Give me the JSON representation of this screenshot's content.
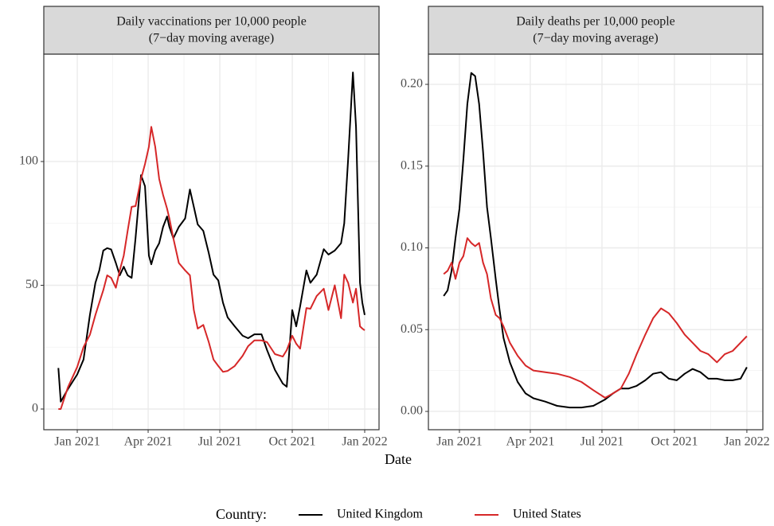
{
  "chart_data": [
    {
      "type": "line",
      "title": "Daily vaccinations per 10,000 people",
      "subtitle": "(7−day moving average)",
      "x": [
        -24,
        -21,
        -12,
        0,
        8,
        16,
        23,
        28,
        33,
        38,
        43,
        49,
        54,
        59,
        64,
        69,
        74,
        81,
        86,
        91,
        94,
        99,
        104,
        109,
        114,
        117,
        122,
        129,
        137,
        143,
        148,
        153,
        160,
        167,
        173,
        179,
        185,
        191,
        200,
        210,
        217,
        225,
        234,
        241,
        251,
        261,
        266,
        273,
        278,
        283,
        291,
        296,
        304,
        313,
        319,
        327,
        335,
        339,
        344,
        350,
        354,
        359,
        362,
        365
      ],
      "series": [
        {
          "name": "United Kingdom",
          "color": "#000000",
          "values": [
            16.6,
            3,
            8,
            14,
            20,
            38,
            51,
            56,
            64,
            65,
            64.5,
            59,
            54,
            57.5,
            54,
            53,
            69,
            94.5,
            90,
            62,
            58.5,
            64,
            67,
            73.6,
            77.8,
            73.6,
            69,
            73.6,
            77,
            88.7,
            81.7,
            74.6,
            72,
            63,
            54.3,
            52,
            43,
            37,
            33.4,
            29.6,
            28.6,
            30.2,
            30.2,
            23.8,
            15.8,
            10.3,
            9,
            40,
            33.4,
            41.5,
            56,
            51,
            54.3,
            64.6,
            62.4,
            64,
            67,
            75,
            101,
            136,
            114,
            51,
            43,
            38
          ]
        },
        {
          "name": "United States",
          "color": "#d62728",
          "values": [
            0,
            0,
            8.7,
            17,
            25,
            30,
            38,
            43,
            48,
            54,
            53,
            49,
            56,
            62,
            72,
            81.7,
            82,
            93,
            99,
            106,
            114,
            106,
            93,
            86.5,
            81,
            77,
            69,
            59,
            56,
            54,
            40,
            32.5,
            34,
            27,
            20,
            17.4,
            15,
            15.4,
            17.4,
            21.5,
            25.4,
            27.7,
            27.7,
            27,
            22.2,
            21.2,
            23.8,
            29.6,
            26.4,
            24.4,
            40.8,
            40.5,
            45.7,
            48.6,
            40,
            50,
            36.7,
            54.3,
            51,
            43,
            48.6,
            33.4,
            32.5,
            31.8
          ]
        }
      ],
      "xlim": [
        -42.5,
        383.2
      ],
      "xticks": [
        {
          "value": 0,
          "label": "Jan 2021"
        },
        {
          "value": 90,
          "label": "Apr 2021"
        },
        {
          "value": 181,
          "label": "Jul 2021"
        },
        {
          "value": 273,
          "label": "Oct 2021"
        },
        {
          "value": 365,
          "label": "Jan 2022"
        }
      ],
      "ylim": [
        -8.36,
        143.4
      ],
      "yticks": [
        0,
        50,
        100
      ],
      "grid": true
    },
    {
      "type": "line",
      "title": "Daily deaths per 10,000 people",
      "subtitle": "(7−day moving average)",
      "x": [
        -20,
        -15,
        -10,
        -5,
        0,
        5,
        10,
        15,
        20,
        25,
        30,
        35,
        40,
        46,
        51,
        56,
        64,
        74,
        84,
        94,
        109,
        124,
        140,
        155,
        170,
        185,
        195,
        205,
        215,
        225,
        236,
        246,
        256,
        266,
        276,
        286,
        296,
        306,
        316,
        327,
        337,
        347,
        357,
        365
      ],
      "series": [
        {
          "name": "United Kingdom",
          "color": "#000000",
          "values": [
            0.0706,
            0.074,
            0.086,
            0.106,
            0.124,
            0.154,
            0.188,
            0.207,
            0.205,
            0.188,
            0.159,
            0.125,
            0.106,
            0.081,
            0.062,
            0.045,
            0.03,
            0.018,
            0.011,
            0.008,
            0.006,
            0.0034,
            0.0024,
            0.0024,
            0.0034,
            0.0073,
            0.011,
            0.014,
            0.014,
            0.0156,
            0.019,
            0.023,
            0.024,
            0.02,
            0.019,
            0.023,
            0.026,
            0.024,
            0.02,
            0.02,
            0.019,
            0.019,
            0.02,
            0.027
          ]
        },
        {
          "name": "United States",
          "color": "#d62728",
          "values": [
            0.084,
            0.086,
            0.091,
            0.081,
            0.091,
            0.095,
            0.106,
            0.103,
            0.101,
            0.103,
            0.091,
            0.084,
            0.069,
            0.059,
            0.057,
            0.052,
            0.042,
            0.034,
            0.028,
            0.025,
            0.024,
            0.023,
            0.021,
            0.018,
            0.013,
            0.0083,
            0.011,
            0.014,
            0.023,
            0.035,
            0.047,
            0.057,
            0.063,
            0.06,
            0.054,
            0.047,
            0.042,
            0.037,
            0.035,
            0.03,
            0.035,
            0.037,
            0.042,
            0.046
          ]
        }
      ],
      "xlim": [
        -39.4,
        385.3
      ],
      "xticks": [
        {
          "value": 0,
          "label": "Jan 2021"
        },
        {
          "value": 90,
          "label": "Apr 2021"
        },
        {
          "value": 181,
          "label": "Jul 2021"
        },
        {
          "value": 273,
          "label": "Oct 2021"
        },
        {
          "value": 365,
          "label": "Jan 2022"
        }
      ],
      "ylim": [
        -0.0112,
        0.2185
      ],
      "yticks": [
        {
          "value": 0,
          "label": "0.00"
        },
        0.05,
        {
          "value": 0.1,
          "label": "0.10"
        },
        0.15,
        {
          "value": 0.2,
          "label": "0.20"
        }
      ],
      "grid": true
    }
  ],
  "xlabel": "Date",
  "legend_title": "Country:"
}
